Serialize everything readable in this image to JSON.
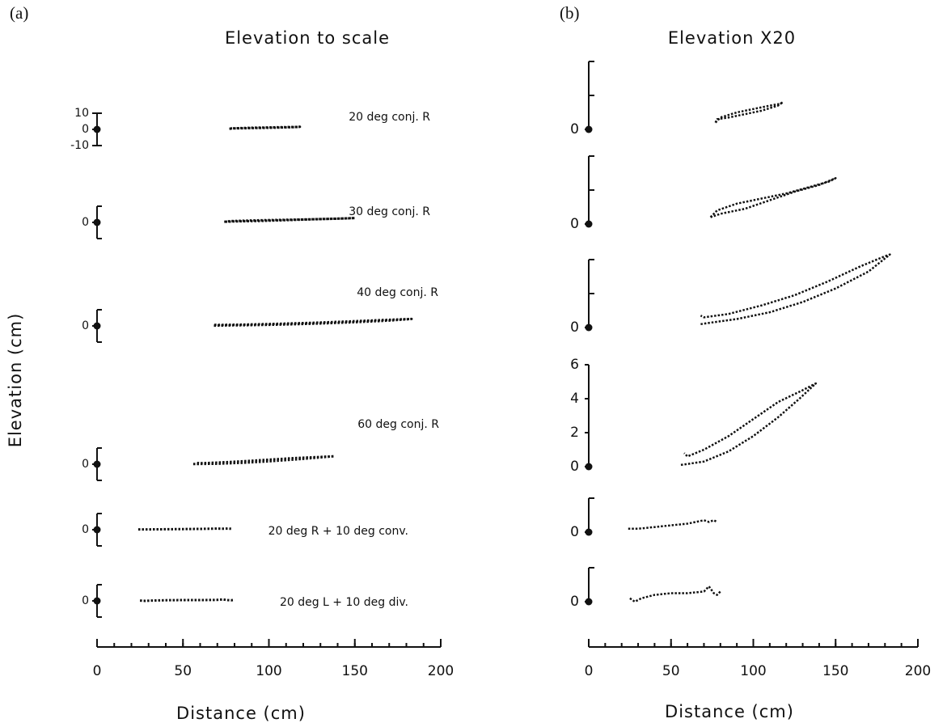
{
  "chart_data": {
    "type": "line",
    "panels": [
      {
        "label": "(a)",
        "title": "Elevation to scale"
      },
      {
        "label": "(b)",
        "title": "Elevation X20"
      }
    ],
    "xlabel": "Distance (cm)",
    "ylabel": "Elevation (cm)",
    "xlim": [
      0,
      200
    ],
    "xticks": [
      0,
      50,
      100,
      150,
      200
    ],
    "x_minor_step": 10,
    "a_ylim": [
      -10,
      10
    ],
    "color": "#111111",
    "series": [
      {
        "name": "20 deg conj. R",
        "a_yticks": [
          10,
          0,
          -10
        ],
        "b_ylim": [
          0,
          4
        ],
        "b_yticks": [
          0
        ],
        "b_minor_ticks": [
          2,
          4
        ],
        "x": [
          77,
          80,
          90,
          100,
          110,
          116,
          118,
          115,
          105,
          95,
          85,
          78,
          77
        ],
        "y": [
          0.4,
          0.7,
          1.0,
          1.2,
          1.4,
          1.5,
          1.6,
          1.4,
          1.1,
          0.9,
          0.7,
          0.6,
          0.4
        ]
      },
      {
        "name": "30 deg conj. R",
        "a_yticks": [
          0
        ],
        "b_ylim": [
          0,
          4
        ],
        "b_yticks": [
          0
        ],
        "b_minor_ticks": [
          2,
          4
        ],
        "x": [
          74,
          78,
          90,
          105,
          120,
          135,
          146,
          150,
          140,
          125,
          110,
          95,
          80,
          74
        ],
        "y": [
          0.4,
          0.8,
          1.2,
          1.5,
          1.8,
          2.2,
          2.5,
          2.7,
          2.3,
          1.9,
          1.4,
          0.9,
          0.6,
          0.4
        ]
      },
      {
        "name": "40 deg conj. R",
        "a_yticks": [
          0
        ],
        "b_ylim": [
          0,
          4
        ],
        "b_yticks": [
          0
        ],
        "b_minor_ticks": [
          2,
          4
        ],
        "x": [
          68,
          75,
          90,
          110,
          130,
          150,
          170,
          183,
          180,
          165,
          145,
          125,
          105,
          85,
          70,
          68
        ],
        "y": [
          0.2,
          0.3,
          0.5,
          0.9,
          1.5,
          2.3,
          3.3,
          4.3,
          4.2,
          3.6,
          2.7,
          1.9,
          1.3,
          0.8,
          0.6,
          0.7
        ]
      },
      {
        "name": "60 deg conj. R",
        "a_yticks": [
          0
        ],
        "b_ylim": [
          0,
          6
        ],
        "b_yticks": [
          0,
          2,
          4,
          6
        ],
        "b_minor_ticks": [],
        "x": [
          56,
          70,
          85,
          100,
          115,
          128,
          138,
          130,
          115,
          100,
          85,
          70,
          60,
          58
        ],
        "y": [
          0.1,
          0.3,
          0.9,
          1.8,
          2.9,
          4.0,
          4.9,
          4.5,
          3.8,
          2.8,
          1.8,
          1.0,
          0.6,
          0.8
        ]
      },
      {
        "name": "20 deg R + 10 deg conv.",
        "a_yticks": [
          0
        ],
        "b_ylim": [
          0,
          2
        ],
        "b_yticks": [
          0
        ],
        "b_minor_ticks": [
          2
        ],
        "x": [
          24,
          30,
          40,
          50,
          60,
          70,
          73,
          76,
          78
        ],
        "y": [
          0.2,
          0.2,
          0.3,
          0.4,
          0.5,
          0.7,
          0.6,
          0.7,
          0.6
        ]
      },
      {
        "name": "20 deg L + 10 deg div.",
        "a_yticks": [
          0
        ],
        "b_ylim": [
          0,
          2
        ],
        "b_yticks": [
          0
        ],
        "b_minor_ticks": [
          2
        ],
        "x": [
          25,
          28,
          32,
          40,
          50,
          60,
          70,
          73,
          76,
          78,
          80
        ],
        "y": [
          0.2,
          0.0,
          0.2,
          0.4,
          0.5,
          0.5,
          0.6,
          0.9,
          0.5,
          0.4,
          0.6
        ]
      }
    ]
  }
}
